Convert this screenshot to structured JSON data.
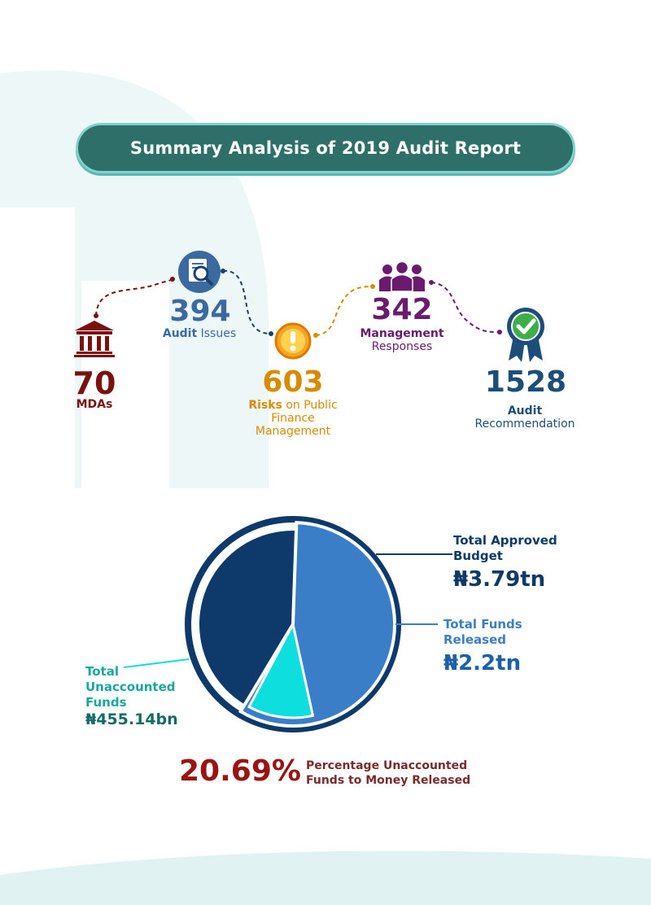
{
  "banner": {
    "title": "Summary Analysis of 2019 Audit Report"
  },
  "stats": {
    "mdas": {
      "value": "70",
      "label": "MDAs",
      "icon": "government-building-icon",
      "color": "#7a1010"
    },
    "audit_issues": {
      "value": "394",
      "label_bold": "Audit",
      "label_rest": " Issues",
      "icon": "document-search-icon",
      "color": "#3a6aa0"
    },
    "risks": {
      "value": "603",
      "label_bold": "Risks",
      "label_rest": " on Public",
      "label_line2": "Finance",
      "label_line3": "Management",
      "icon": "warning-icon",
      "color": "#d98b00"
    },
    "management": {
      "value": "342",
      "label_line1": "Management",
      "label_line2": "Responses",
      "icon": "team-icon",
      "color": "#6a1b6e"
    },
    "recommendation": {
      "value": "1528",
      "label_line1": "Audit",
      "label_line2": "Recommendation",
      "icon": "award-ribbon-icon",
      "color": "#1d4e7a"
    }
  },
  "chart_data": {
    "type": "pie",
    "total_approved_budget": {
      "label_line1": "Total Approved",
      "label_line2": "Budget",
      "value_text": "₦3.79tn",
      "value": 3.79,
      "color": "#0d3a6b"
    },
    "total_funds_released": {
      "label_line1": "Total Funds",
      "label_line2": "Released",
      "value_text": "₦2.2tn",
      "value": 2.2,
      "color": "#3a7ec8"
    },
    "total_unaccounted_funds": {
      "label_line1": "Total",
      "label_line2": "Unaccounted",
      "label_line3": "Funds",
      "value_text": "₦455.14bn",
      "value": 0.45514,
      "color": "#0fdede"
    }
  },
  "footer_stat": {
    "value": "20.69%",
    "label_line1": "Percentage Unaccounted",
    "label_line2": "Funds to Money Released",
    "value_color": "#9a1414",
    "label_color": "#7a2a2a"
  }
}
